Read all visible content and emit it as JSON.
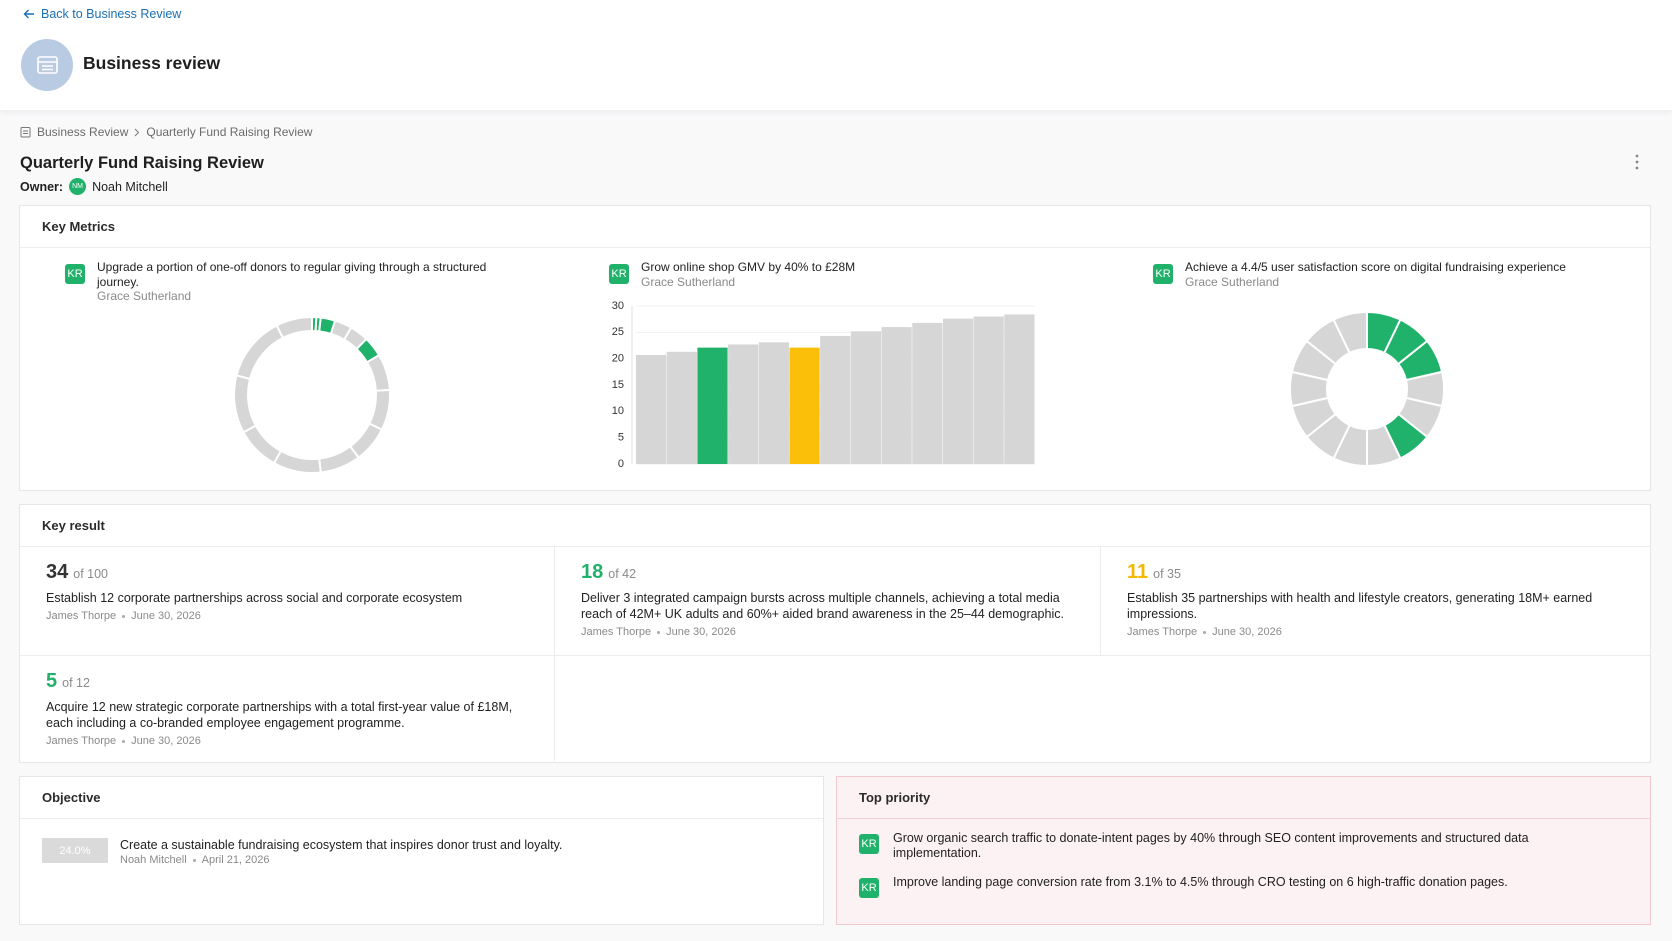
{
  "header": {
    "back_link": "Back to Business Review",
    "title": "Business review"
  },
  "breadcrumb": [
    "Business Review",
    "Quarterly Fund Raising Review"
  ],
  "review": {
    "title": "Quarterly Fund Raising Review",
    "owner_label": "Owner:",
    "owner_initials": "NM",
    "owner_name": "Noah Mitchell"
  },
  "key_metrics": {
    "title": "Key Metrics",
    "items": [
      {
        "badge": "KR",
        "title": "Upgrade a portion of one-off donors to regular giving through a structured journey.",
        "owner": "Grace Sutherland",
        "chart": {
          "type": "donut",
          "values": [
            3,
            3,
            10,
            12,
            13,
            14,
            25,
            28,
            25,
            28,
            33,
            30,
            40,
            45,
            25
          ],
          "colors": [
            "#20b26b",
            "#20b26b",
            "#20b26b",
            "#d6d6d6",
            "#d6d6d6",
            "#20b26b",
            "#d6d6d6",
            "#d6d6d6",
            "#d6d6d6",
            "#d6d6d6",
            "#d6d6d6",
            "#d6d6d6",
            "#d6d6d6",
            "#d6d6d6",
            "#d6d6d6"
          ]
        }
      },
      {
        "badge": "KR",
        "title": "Grow online shop GMV by 40% to £28M",
        "owner": "Grace Sutherland",
        "chart": {
          "type": "bar",
          "categories": [
            null,
            null,
            null,
            null,
            null,
            null,
            null,
            null,
            null,
            null,
            null,
            null,
            null
          ],
          "values": [
            20.7,
            21.3,
            22.1,
            22.7,
            23.1,
            22.1,
            24.3,
            25.2,
            26,
            26.8,
            27.6,
            28,
            28.4
          ],
          "colors": [
            "#d6d6d6",
            "#d6d6d6",
            "#20b26b",
            "#d6d6d6",
            "#d6d6d6",
            "#fbbf09",
            "#d6d6d6",
            "#d6d6d6",
            "#d6d6d6",
            "#d6d6d6",
            "#d6d6d6",
            "#d6d6d6",
            "#d6d6d6"
          ],
          "ylim": [
            0,
            30
          ],
          "yticks": [
            0,
            5,
            10,
            15,
            20,
            25,
            30
          ],
          "grid": true
        }
      },
      {
        "badge": "KR",
        "title": "Achieve a 4.4/5 user satisfaction score on digital fundraising experience",
        "owner": "Grace Sutherland",
        "chart": {
          "type": "donut",
          "values": [
            1,
            1,
            1,
            1,
            1,
            1,
            1,
            1,
            1,
            1,
            1,
            1,
            1,
            1
          ],
          "colors": [
            "#20b26b",
            "#20b26b",
            "#20b26b",
            "#d6d6d6",
            "#d6d6d6",
            "#20b26b",
            "#d6d6d6",
            "#d6d6d6",
            "#d6d6d6",
            "#d6d6d6",
            "#d6d6d6",
            "#d6d6d6",
            "#d6d6d6",
            "#d6d6d6"
          ]
        }
      }
    ]
  },
  "key_results": {
    "title": "Key result",
    "items": [
      {
        "current": 34,
        "total": "of 100",
        "color": "#333333",
        "description": "Establish 12 corporate partnerships across social and corporate ecosystem",
        "owner": "James Thorpe",
        "date": "June 30, 2026"
      },
      {
        "current": 18,
        "total": "of 42",
        "color": "#20b26b",
        "description": "Deliver 3 integrated campaign bursts across multiple channels, achieving a total media reach of 42M+ UK adults and 60%+ aided brand awareness in the 25–44 demographic.",
        "owner": "James Thorpe",
        "date": "June 30, 2026"
      },
      {
        "current": 11,
        "total": "of 35",
        "color": "#f5b800",
        "description": "Establish 35 partnerships with health and lifestyle creators, generating 18M+ earned impressions.",
        "owner": "James Thorpe",
        "date": "June 30, 2026"
      },
      {
        "current": 5,
        "total": "of 12",
        "color": "#20b26b",
        "description": "Acquire 12 new strategic corporate partnerships with a total first-year value of £18M, each including a co-branded employee engagement programme.",
        "owner": "James Thorpe",
        "date": "June 30, 2026"
      }
    ]
  },
  "objective": {
    "title": "Objective",
    "items": [
      {
        "progress": "24.0%",
        "description": "Create a sustainable fundraising ecosystem that inspires donor trust and loyalty.",
        "owner": "Noah Mitchell",
        "date": "April 21, 2026"
      }
    ]
  },
  "top_priority": {
    "title": "Top priority",
    "items": [
      {
        "badge": "KR",
        "description": "Grow organic search traffic to donate-intent pages by 40% through SEO content improvements and structured data implementation."
      },
      {
        "badge": "KR",
        "description": "Improve landing page conversion rate from 3.1% to 4.5% through CRO testing on 6 high-traffic donation pages."
      }
    ]
  }
}
